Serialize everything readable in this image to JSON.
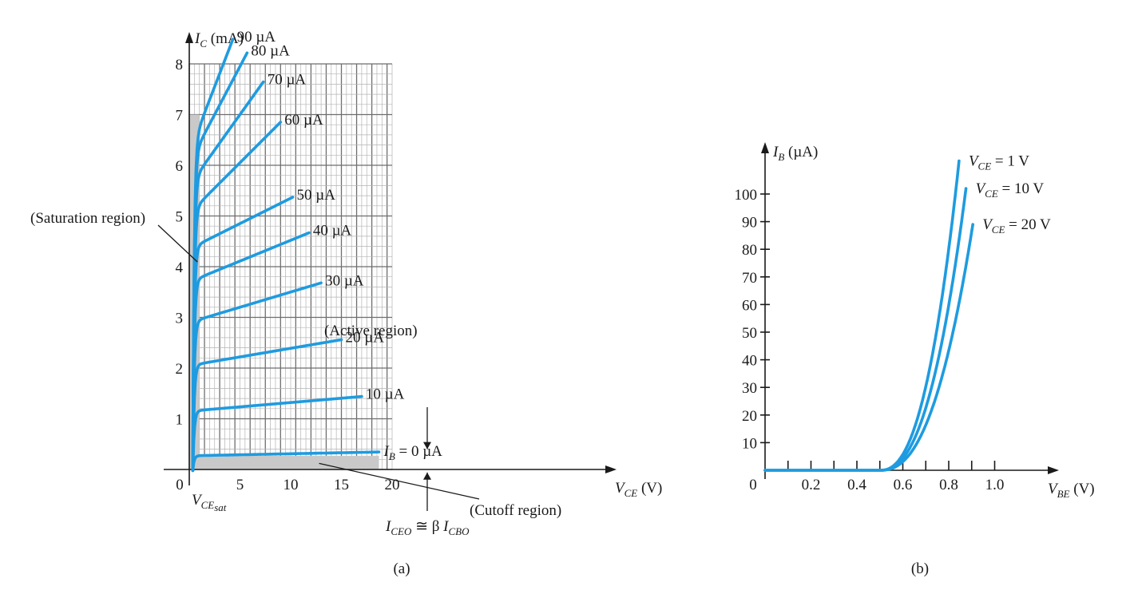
{
  "chart_data": [
    {
      "type": "line",
      "panel_label": "(a)",
      "xlabel": {
        "var": "V",
        "sub": "CE",
        "unit": "(V)"
      },
      "ylabel": {
        "var": "I",
        "sub": "C",
        "unit": "(mA)"
      },
      "xlim": [
        0,
        20
      ],
      "ylim": [
        0,
        8
      ],
      "xticks": [
        "0",
        "5",
        "10",
        "15",
        "20"
      ],
      "yticks": [
        "1",
        "2",
        "3",
        "4",
        "5",
        "6",
        "7",
        "8"
      ],
      "grid": true,
      "series": [
        {
          "label": "10 µA",
          "i_sat": 1.15,
          "slope": 0.017,
          "v_end": 17
        },
        {
          "label": "20 µA",
          "i_sat": 2.05,
          "slope": 0.034,
          "v_end": 15
        },
        {
          "label": "30 µA",
          "i_sat": 2.9,
          "slope": 0.06,
          "v_end": 13
        },
        {
          "label": "40 µA",
          "i_sat": 3.7,
          "slope": 0.082,
          "v_end": 11.8
        },
        {
          "label": "50 µA",
          "i_sat": 4.35,
          "slope": 0.1,
          "v_end": 10.2
        },
        {
          "label": "60 µA",
          "i_sat": 5.05,
          "slope": 0.2,
          "v_end": 9
        },
        {
          "label": "70 µA",
          "i_sat": 5.6,
          "slope": 0.28,
          "v_end": 7.3
        },
        {
          "label": "80 µA",
          "i_sat": 6.05,
          "slope": 0.38,
          "v_end": 5.7
        },
        {
          "label": "90 µA",
          "i_sat": 6.25,
          "slope": 0.52,
          "v_end": 4.3
        }
      ],
      "cutoff_series": {
        "label_var": "I",
        "label_sub": "B",
        "label_rest": " = 0 µA",
        "i_sat": 0.27,
        "slope": 0.004,
        "v_end": 18.7
      },
      "annotations": {
        "saturation": "(Saturation region)",
        "active": "(Active region)",
        "cutoff": "(Cutoff region)",
        "vcesat": {
          "var": "V",
          "sub": "CE",
          "subsub": "sat"
        },
        "iceo": {
          "lhs_var": "I",
          "lhs_sub": "CEO",
          "op": " ≅ β ",
          "rhs_var": "I",
          "rhs_sub": "CBO"
        }
      }
    },
    {
      "type": "line",
      "panel_label": "(b)",
      "xlabel": {
        "var": "V",
        "sub": "BE",
        "unit": "(V)"
      },
      "ylabel": {
        "var": "I",
        "sub": "B",
        "unit": "(µA)"
      },
      "xlim": [
        0,
        1.2
      ],
      "ylim": [
        0,
        110
      ],
      "xticks": [
        "0",
        "0.2",
        "0.4",
        "0.6",
        "0.8",
        "1.0"
      ],
      "yticks": [
        "10",
        "20",
        "30",
        "40",
        "50",
        "60",
        "70",
        "80",
        "90",
        "100"
      ],
      "grid": false,
      "series": [
        {
          "label_var": "V",
          "label_sub": "CE",
          "label_rest": " = 1 V",
          "v_end": 0.845,
          "i_end": 112
        },
        {
          "label_var": "V",
          "label_sub": "CE",
          "label_rest": " = 10 V",
          "v_end": 0.875,
          "i_end": 102
        },
        {
          "label_var": "V",
          "label_sub": "CE",
          "label_rest": " = 20 V",
          "v_end": 0.905,
          "i_end": 89
        }
      ],
      "turn_on": 0.5
    }
  ]
}
